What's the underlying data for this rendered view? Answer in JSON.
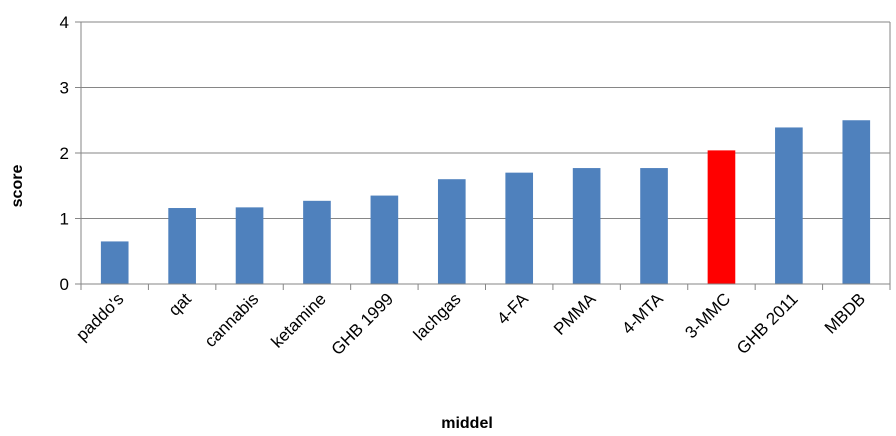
{
  "chart_data": {
    "type": "bar",
    "categories": [
      "paddo's",
      "qat",
      "cannabis",
      "ketamine",
      "GHB 1999",
      "lachgas",
      "4-FA",
      "PMMA",
      "4-MTA",
      "3-MMC",
      "GHB 2011",
      "MBDB"
    ],
    "values": [
      0.65,
      1.16,
      1.17,
      1.27,
      1.35,
      1.6,
      1.7,
      1.77,
      1.77,
      2.04,
      2.39,
      2.5
    ],
    "highlight_index": 9,
    "xlabel": "middel",
    "ylabel": "score",
    "ylim": [
      0,
      4
    ],
    "yticks": [
      0,
      1,
      2,
      3,
      4
    ],
    "grid": true,
    "colors": {
      "bar": "#4f81bd",
      "highlight": "#ff0000",
      "grid": "#868686",
      "axis": "#868686"
    }
  }
}
